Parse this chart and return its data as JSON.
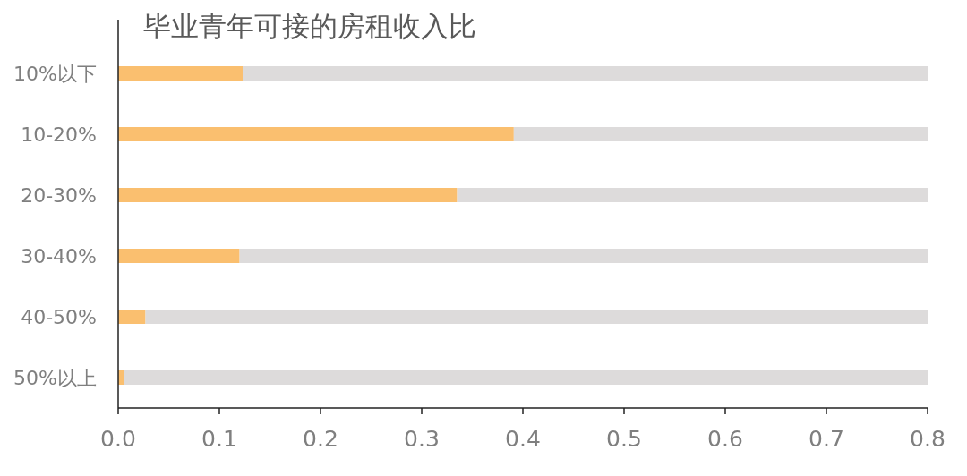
{
  "chart_data": {
    "type": "bar",
    "orientation": "horizontal",
    "stacked": true,
    "title": "毕业青年可接的房租收入比",
    "categories": [
      "10%以下",
      "10-20%",
      "20-30%",
      "30-40%",
      "40-50%",
      "50%以上"
    ],
    "series": [
      {
        "color": "#fabf6f",
        "values": [
          0.123,
          0.391,
          0.335,
          0.12,
          0.027,
          0.006
        ]
      },
      {
        "color": "#dddbdb",
        "values": [
          0.677,
          0.409,
          0.465,
          0.68,
          0.773,
          0.794
        ]
      }
    ],
    "xlim": [
      0,
      0.8
    ],
    "xticks": [
      {
        "value": 0,
        "label": "0.0"
      },
      0.1,
      0.2,
      0.3,
      0.4,
      0.5,
      0.6,
      0.7,
      0.8
    ]
  }
}
